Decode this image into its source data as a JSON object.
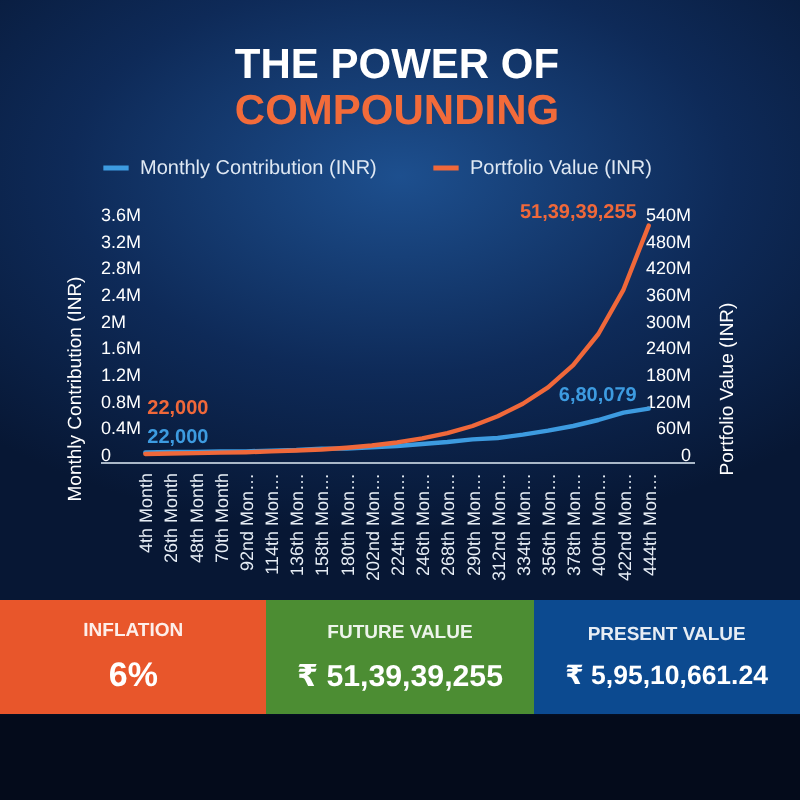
{
  "chart_data": [
    {
      "type": "line",
      "title": "THE POWER OF",
      "subtitle": "COMPOUNDING",
      "categories": [
        "4th Month",
        "26th Month",
        "48th Month",
        "70th Month",
        "92nd Mon…",
        "114th Mon…",
        "136th Mon…",
        "158th Mon…",
        "180th Mon…",
        "202nd Mon…",
        "224th Mon…",
        "246th Mon…",
        "268th Mon…",
        "290th Mon…",
        "312nd Mon…",
        "334th Mon…",
        "356th Mon…",
        "378th Mon…",
        "400th Mon…",
        "422nd Mon…",
        "444th Mon…"
      ],
      "series": [
        {
          "name": "Monthly Contribution (INR)",
          "color": "#3d9be0",
          "values": [
            22000,
            30000,
            30000,
            40000,
            40000,
            50000,
            60000,
            80000,
            80000,
            100000,
            120000,
            150000,
            180000,
            220000,
            240000,
            290000,
            350000,
            420000,
            510000,
            620000,
            680079
          ],
          "value_labels": [
            "22,000",
            null,
            null,
            null,
            null,
            null,
            null,
            null,
            null,
            null,
            null,
            null,
            null,
            null,
            null,
            null,
            null,
            null,
            null,
            null,
            "6,80,079"
          ]
        },
        {
          "name": "Portfolio Value (INR)",
          "color": "#f0683a",
          "axis": "y2",
          "values": [
            22000,
            1000000,
            2000000,
            3000000,
            4000000,
            6000000,
            8000000,
            10000000,
            14000000,
            19000000,
            26000000,
            35000000,
            47000000,
            63000000,
            85000000,
            113000000,
            150000000,
            200000000,
            270000000,
            370000000,
            513939255
          ],
          "value_labels": [
            "22,000",
            null,
            null,
            null,
            null,
            null,
            null,
            null,
            null,
            null,
            null,
            null,
            null,
            null,
            null,
            null,
            null,
            null,
            null,
            null,
            "51,39,39,255"
          ]
        }
      ],
      "ylabel": "Monthly Contribution (INR)",
      "y2label": "Portfolio Value (INR)",
      "ylim": [
        0,
        3600000
      ],
      "yticks": [
        0,
        {
          "value": 400000,
          "label": "0.4M"
        },
        {
          "value": 800000,
          "label": "0.8M"
        },
        {
          "value": 1200000,
          "label": "1.2M"
        },
        {
          "value": 1600000,
          "label": "1.6M"
        },
        {
          "value": 2000000,
          "label": "2M"
        },
        {
          "value": 2400000,
          "label": "2.4M"
        },
        {
          "value": 2800000,
          "label": "2.8M"
        },
        {
          "value": 3200000,
          "label": "3.2M"
        },
        {
          "value": 3600000,
          "label": "3.6M"
        }
      ],
      "y2lim": [
        0,
        540000000
      ],
      "y2ticks": [
        0,
        {
          "value": 60000000,
          "label": "60M"
        },
        {
          "value": 120000000,
          "label": "120M"
        },
        {
          "value": 180000000,
          "label": "180M"
        },
        {
          "value": 240000000,
          "label": "240M"
        },
        {
          "value": 300000000,
          "label": "300M"
        },
        {
          "value": 360000000,
          "label": "360M"
        },
        {
          "value": 420000000,
          "label": "420M"
        },
        {
          "value": 480000000,
          "label": "480M"
        },
        {
          "value": 540000000,
          "label": "540M"
        }
      ],
      "legend": "top",
      "line_style": "solid"
    },
    {
      "type": "other",
      "annotations": [
        "INFLATION",
        "6%",
        "FUTURE VALUE",
        "₹ 51,39,39,255",
        "PRESENT VALUE",
        "₹ 5,95,10,661.24"
      ],
      "colors": [
        "#e8562b",
        "#4c8d33",
        "#0c4a90"
      ]
    }
  ]
}
